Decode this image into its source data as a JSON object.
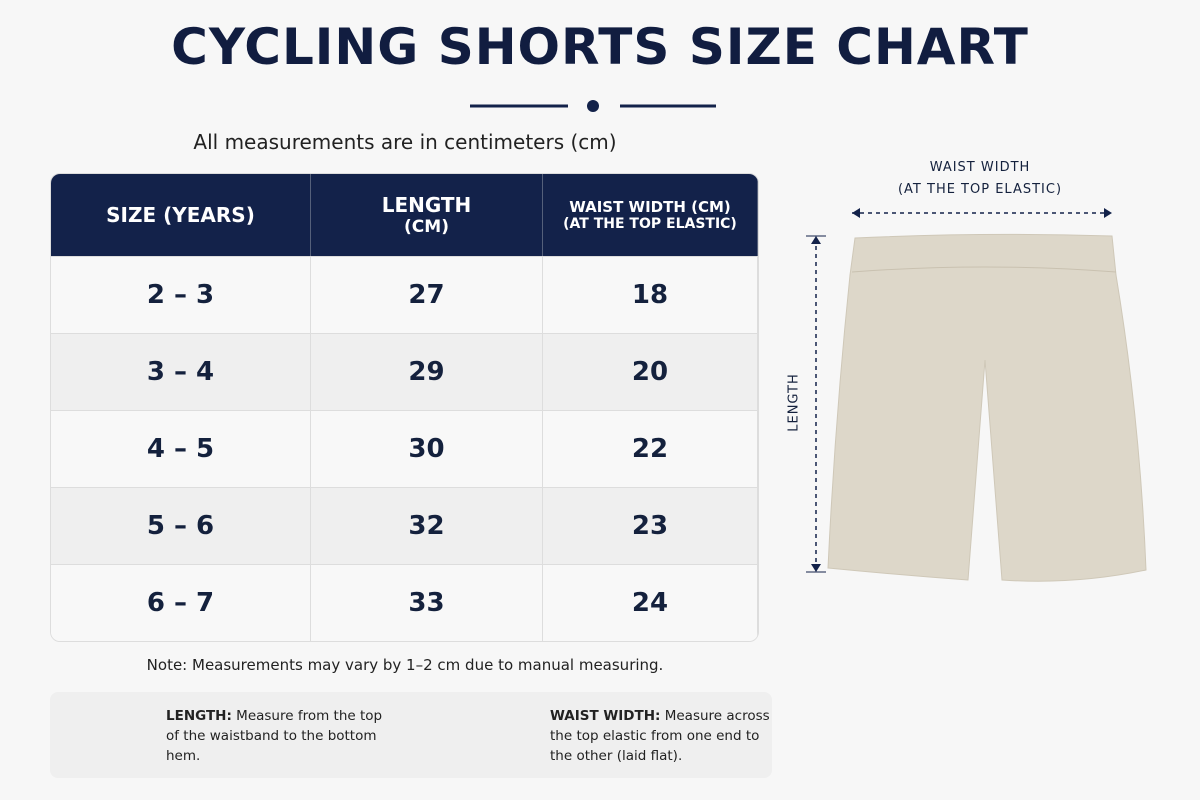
{
  "header": {
    "title": "CYCLING SHORTS SIZE CHART",
    "subtitle": "All measurements are in centimeters (cm)"
  },
  "table": {
    "columns": [
      [
        "SIZE (YEARS)"
      ],
      [
        "LENGTH",
        "(CM)"
      ],
      [
        "WAIST WIDTH (CM)",
        "(AT THE TOP ELASTIC)"
      ]
    ],
    "rows": [
      [
        "2 – 3",
        27,
        18
      ],
      [
        "3 – 4",
        29,
        20
      ],
      [
        "4 – 5",
        30,
        22
      ],
      [
        "5 – 6",
        32,
        23
      ],
      [
        "6 – 7",
        33,
        24
      ]
    ]
  },
  "note": "Note: Measurements may vary by 1–2 cm due to manual measuring.",
  "tips": [
    {
      "label": "LENGTH:",
      "text": "Measure from the top of the waistband to the bottom hem."
    },
    {
      "label": "WAIST WIDTH:",
      "text": "Measure across the top elastic from one end to the other (laid flat)."
    }
  ],
  "diagram": {
    "waist_label": [
      "WAIST WIDTH",
      "(AT THE TOP ELASTIC)"
    ],
    "length_label": "LENGTH"
  }
}
